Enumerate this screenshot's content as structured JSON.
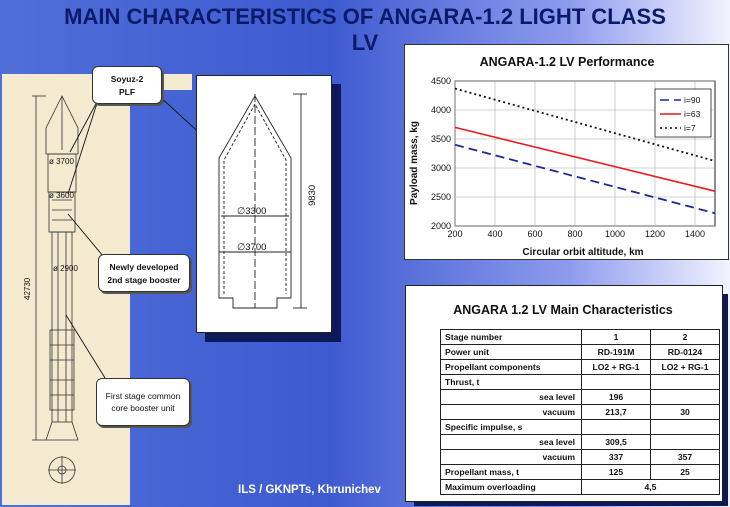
{
  "title": {
    "line1": "MAIN CHARACTERISTICS OF ANGARA-1.2 LIGHT CLASS",
    "line2": "LV"
  },
  "rocket": {
    "dims": {
      "d1": "ø 3700",
      "d2": "ø 3600",
      "d3": "ø 2900",
      "length": "42730"
    },
    "callouts": {
      "soyuz_l1": "Soyuz-2",
      "soyuz_l2": "PLF",
      "new_l1": "Newly developed",
      "new_l2": "2nd stage booster",
      "first_l1": "First stage common",
      "first_l2": "core booster unit"
    }
  },
  "plf": {
    "d_inner": "∅3300",
    "d_outer": "∅3700",
    "height": "9830"
  },
  "credit": "ILS / GKNPTs, Khrunichev",
  "chart_data": {
    "type": "line",
    "title": "ANGARA-1.2 LV Performance",
    "xlabel": "Circular orbit altitude, km",
    "ylabel": "Payload mass, kg",
    "xlim": [
      200,
      1500
    ],
    "ylim": [
      2000,
      4500
    ],
    "xticks": [
      "200",
      "400",
      "600",
      "800",
      "1000",
      "1200",
      "1400"
    ],
    "yticks": [
      "2000",
      "2500",
      "3000",
      "3500",
      "4000",
      "4500"
    ],
    "grid": true,
    "legend_position": "top-right",
    "series": [
      {
        "name": "i=90",
        "style": "dashed",
        "color": "#1c2a9a",
        "x": [
          200,
          1500
        ],
        "y": [
          3400,
          2220
        ]
      },
      {
        "name": "i=63",
        "style": "solid",
        "color": "#e8191f",
        "x": [
          200,
          1500
        ],
        "y": [
          3700,
          2600
        ]
      },
      {
        "name": "i=7",
        "style": "dotted",
        "color": "#111111",
        "x": [
          200,
          1500
        ],
        "y": [
          4370,
          3120
        ]
      }
    ]
  },
  "table": {
    "title": "ANGARA 1.2 LV Main Characteristics",
    "rows": [
      [
        "Stage number",
        "1",
        "2"
      ],
      [
        "Power unit",
        "RD-191M",
        "RD-0124"
      ],
      [
        "Propellant components",
        "LO2 + RG-1",
        "LO2 + RG-1"
      ],
      [
        "Thrust, t",
        "",
        ""
      ],
      [
        "sea level",
        "196",
        ""
      ],
      [
        "vacuum",
        "213,7",
        "30"
      ],
      [
        "Specific impulse, s",
        "",
        ""
      ],
      [
        "sea level",
        "309,5",
        ""
      ],
      [
        "vacuum",
        "337",
        "357"
      ],
      [
        "Propellant mass, t",
        "125",
        "25"
      ],
      [
        "Maximum overloading",
        "4,5",
        ""
      ]
    ]
  }
}
